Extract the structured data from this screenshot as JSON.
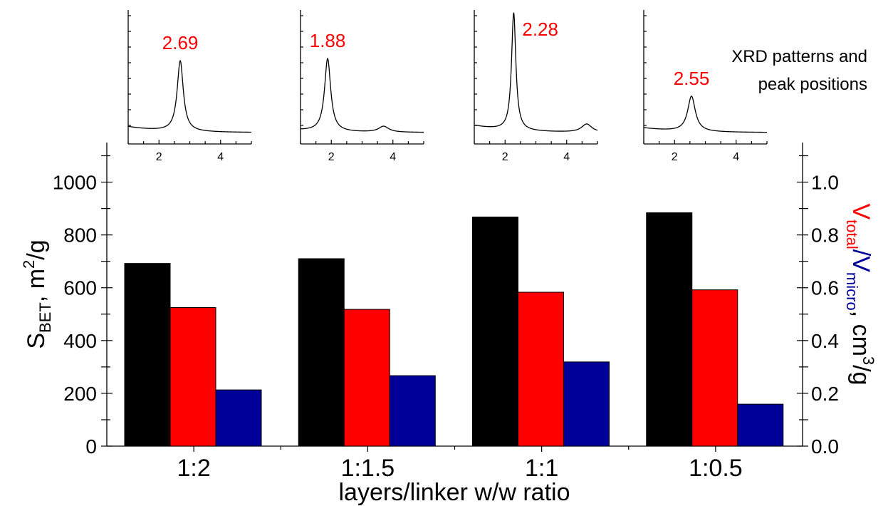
{
  "chart_data": [
    {
      "type": "bar",
      "categories": [
        "1:2",
        "1:1.5",
        "1:1",
        "1:0.5"
      ],
      "xlabel": "layers/linker w/w ratio",
      "ylabel_left": {
        "main": "S",
        "sub": "BET",
        "rest": ", m",
        "sup": "2",
        "tail": "/g"
      },
      "ylabel_right": {
        "v1": "V",
        "v1_sub": "total",
        "slash": "/",
        "v2": "V",
        "v2_sub": "micro",
        "unit": ", cm",
        "unit_sup": "3",
        "unit_tail": "/g"
      },
      "ylim_left": [
        0,
        1150
      ],
      "ylim_right": [
        0,
        1.15
      ],
      "left_ticks": [
        "0",
        "200",
        "400",
        "600",
        "800",
        "1000"
      ],
      "right_ticks": [
        "0.0",
        "0.2",
        "0.4",
        "0.6",
        "0.8",
        "1.0"
      ],
      "series": [
        {
          "axis": "left",
          "color": "#000000",
          "values": [
            692,
            710,
            868,
            884
          ]
        },
        {
          "axis": "right",
          "color": "#ff0000",
          "values": [
            0.525,
            0.518,
            0.583,
            0.592
          ]
        },
        {
          "axis": "right",
          "color": "#000099",
          "values": [
            0.213,
            0.267,
            0.319,
            0.159
          ]
        }
      ]
    },
    {
      "type": "line",
      "title": "XRD patterns and peak positions",
      "insets": [
        {
          "xlim": [
            1,
            5
          ],
          "xticks": [
            "2",
            "4"
          ],
          "peak_x": 2.69,
          "peak_label": "2.69",
          "peak_height": 0.6,
          "width": 0.12,
          "baseline": [
            0.05,
            0.0
          ],
          "secondary": null
        },
        {
          "xlim": [
            1,
            5
          ],
          "xticks": [
            "2",
            "4"
          ],
          "peak_x": 1.88,
          "peak_label": "1.88",
          "peak_height": 0.62,
          "width": 0.12,
          "baseline": [
            0.02,
            0.0
          ],
          "secondary": [
            3.7,
            0.05
          ]
        },
        {
          "xlim": [
            1,
            5
          ],
          "xticks": [
            "2",
            "4"
          ],
          "peak_x": 2.28,
          "peak_label": "2.28",
          "peak_height": 1.0,
          "width": 0.085,
          "baseline": [
            0.06,
            0.0
          ],
          "secondary": [
            4.65,
            0.07
          ]
        },
        {
          "xlim": [
            1,
            5
          ],
          "xticks": [
            "2",
            "4"
          ],
          "peak_x": 2.55,
          "peak_label": "2.55",
          "peak_height": 0.3,
          "width": 0.15,
          "baseline": [
            0.04,
            0.0
          ],
          "secondary": null
        }
      ]
    }
  ],
  "colors": {
    "peak_label": "#ff0000",
    "v_total": "#ff0000",
    "v_micro": "#000099"
  }
}
